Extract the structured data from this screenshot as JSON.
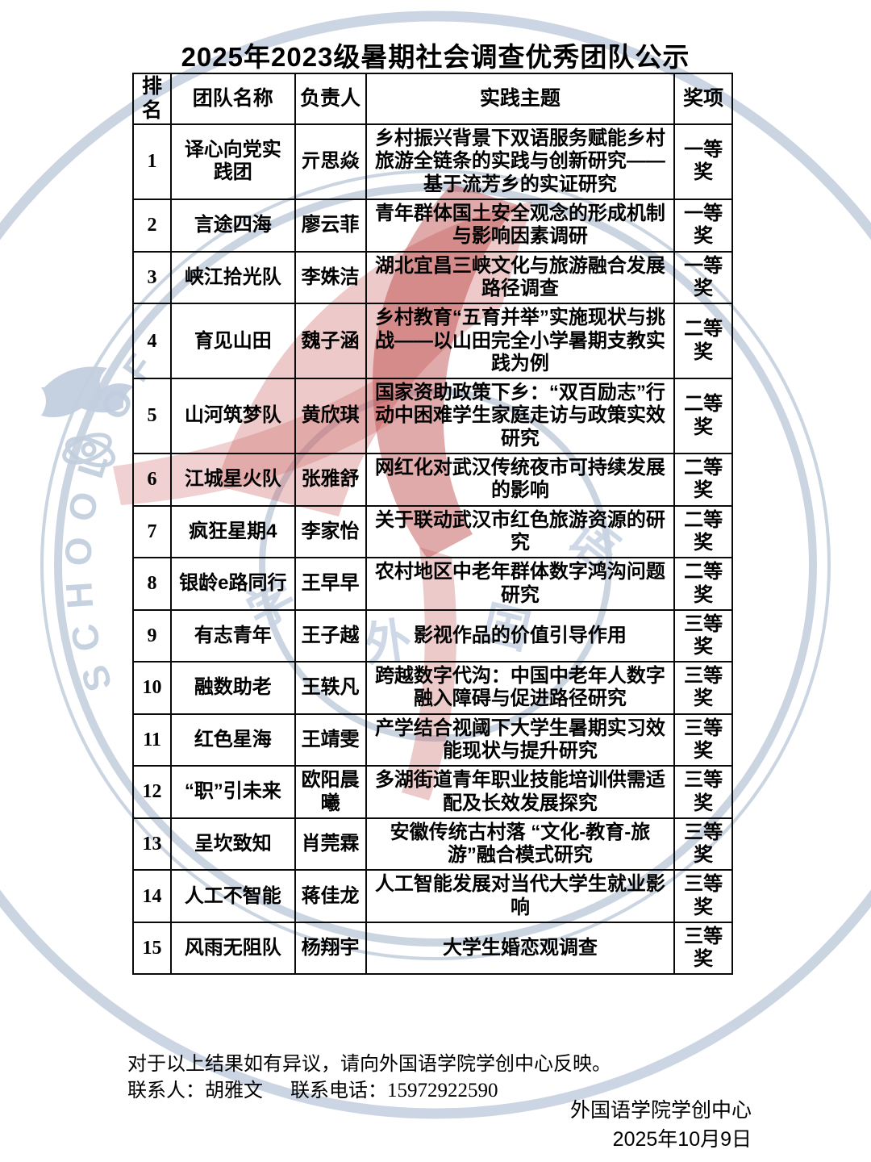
{
  "title": "2025年2023级暑期社会调查优秀团队公示",
  "table": {
    "headers": {
      "rank": "排名",
      "team": "团队名称",
      "leader": "负责人",
      "topic": "实践主题",
      "award": "奖项"
    },
    "rows": [
      {
        "rank": "1",
        "team": "译心向党实践团",
        "leader": "亓思焱",
        "topic": "乡村振兴背景下双语服务赋能乡村旅游全链条的实践与创新研究——基于流芳乡的实证研究",
        "award": "一等奖",
        "topic_align": "center"
      },
      {
        "rank": "2",
        "team": "言途四海",
        "leader": "廖云菲",
        "topic": "青年群体国土安全观念的形成机制与影响因素调研",
        "award": "一等奖",
        "topic_align": "center"
      },
      {
        "rank": "3",
        "team": "峡江拾光队",
        "leader": "李姝洁",
        "topic": "湖北宜昌三峡文化与旅游融合发展路径调查",
        "award": "一等奖",
        "topic_align": "center"
      },
      {
        "rank": "4",
        "team": "育见山田",
        "leader": "魏子涵",
        "topic": "乡村教育“五育并举”实施现状与挑战——以山田完全小学暑期支教实践为例",
        "award": "二等奖",
        "topic_align": "center"
      },
      {
        "rank": "5",
        "team": "山河筑梦队",
        "leader": "黄欣琪",
        "topic": "国家资助政策下乡：“双百励志”行动中困难学生家庭走访与政策实效研究",
        "award": "二等奖",
        "topic_align": "center"
      },
      {
        "rank": "6",
        "team": "江城星火队",
        "leader": "张雅舒",
        "topic": "网红化对武汉传统夜市可持续发展的影响",
        "award": "二等奖",
        "topic_align": "center"
      },
      {
        "rank": "7",
        "team": "疯狂星期4",
        "leader": "李家怡",
        "topic": "关于联动武汉市红色旅游资源的研究",
        "award": "二等奖",
        "topic_align": "center"
      },
      {
        "rank": "8",
        "team": "银龄e路同行",
        "leader": "王早早",
        "topic": "农村地区中老年群体数字鸿沟问题研究",
        "award": "二等奖",
        "topic_align": "center"
      },
      {
        "rank": "9",
        "team": "有志青年",
        "leader": "王子越",
        "topic": "影视作品的价值引导作用",
        "award": "三等奖",
        "topic_align": "center"
      },
      {
        "rank": "10",
        "team": "融数助老",
        "leader": "王轶凡",
        "topic": "跨越数字代沟：中国中老年人数字融入障碍与促进路径研究",
        "award": "三等奖",
        "topic_align": "left"
      },
      {
        "rank": "11",
        "team": "红色星海",
        "leader": "王靖雯",
        "topic": "产学结合视阈下大学生暑期实习效能现状与提升研究",
        "award": "三等奖",
        "topic_align": "center"
      },
      {
        "rank": "12",
        "team": "“职”引未来",
        "leader": "欧阳晨曦",
        "topic": "多湖街道青年职业技能培训供需适配及长效发展探究",
        "award": "三等奖",
        "topic_align": "center"
      },
      {
        "rank": "13",
        "team": "呈坎致知",
        "leader": "肖莞霖",
        "topic": "安徽传统古村落 “文化-教育-旅游”融合模式研究",
        "award": "三等奖",
        "topic_align": "center"
      },
      {
        "rank": "14",
        "team": "人工不智能",
        "leader": "蒋佳龙",
        "topic": "人工智能发展对当代大学生就业影响",
        "award": "三等奖",
        "topic_align": "left"
      },
      {
        "rank": "15",
        "team": "风雨无阻队",
        "leader": "杨翔宇",
        "topic": "大学生婚恋观调查",
        "award": "三等奖",
        "topic_align": "center"
      }
    ]
  },
  "footer": {
    "notice": "对于以上结果如有异议，请向外国语学院学创中心反映。",
    "contact_label": "联系人：",
    "contact_name": "胡雅文",
    "phone_label": "联系电话：",
    "phone": "15972922590",
    "org": "外国语学院学创中心",
    "date": "2025年10月9日"
  },
  "watermark": {
    "arc_text": "SCHOOL OF",
    "chars": [
      "学",
      "外",
      "国",
      "语"
    ],
    "ring_color": "#c2cede",
    "red_color": "#c06060"
  }
}
